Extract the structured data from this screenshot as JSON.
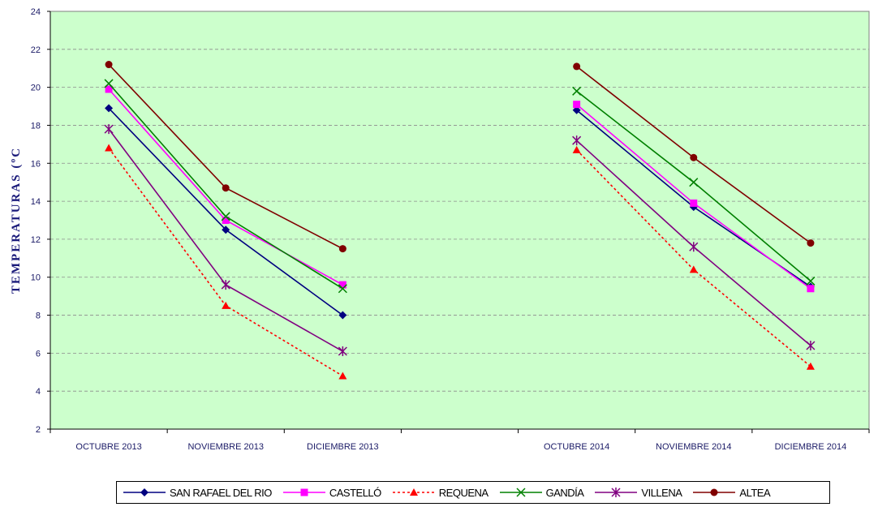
{
  "chart_data": {
    "type": "line",
    "ylabel": "TEMPERATURAS (ºC",
    "ylim": [
      2,
      24
    ],
    "yticks": [
      "2",
      "4",
      "6",
      "8",
      "10",
      "12",
      "14",
      "16",
      "18",
      "20",
      "22",
      "24"
    ],
    "categories": [
      "OCTUBRE      2013",
      "NOVIEMBRE 2013",
      "DICIEMBRE  2013",
      "",
      "OCTUBRE      2014",
      "NOVIEMBRE 2014",
      "DICIEMBRE  2014"
    ],
    "grid": true,
    "background": "#ccffcc",
    "legend_position": "bottom",
    "series": [
      {
        "name": "SAN RAFAEL DEL RIO",
        "color": "#000080",
        "marker": "diamond",
        "dashed": false,
        "values": [
          18.9,
          12.5,
          8.0,
          null,
          18.8,
          13.7,
          9.5
        ]
      },
      {
        "name": "CASTELLÓ",
        "color": "#ff00ff",
        "marker": "square",
        "dashed": false,
        "values": [
          19.9,
          13.0,
          9.6,
          null,
          19.1,
          13.9,
          9.4
        ]
      },
      {
        "name": "REQUENA",
        "color": "#ff0000",
        "marker": "triangle",
        "dashed": true,
        "values": [
          16.8,
          8.5,
          4.8,
          null,
          16.7,
          10.4,
          5.3
        ]
      },
      {
        "name": "GANDÍA",
        "color": "#008000",
        "marker": "x",
        "dashed": false,
        "values": [
          20.2,
          13.2,
          9.4,
          null,
          19.8,
          15.0,
          9.8
        ]
      },
      {
        "name": "VILLENA",
        "color": "#800080",
        "marker": "star",
        "dashed": false,
        "values": [
          17.8,
          9.6,
          6.1,
          null,
          17.2,
          11.6,
          6.4
        ]
      },
      {
        "name": "ALTEA",
        "color": "#800000",
        "marker": "circle",
        "dashed": false,
        "values": [
          21.2,
          14.7,
          11.5,
          null,
          21.1,
          16.3,
          11.8
        ]
      }
    ]
  }
}
